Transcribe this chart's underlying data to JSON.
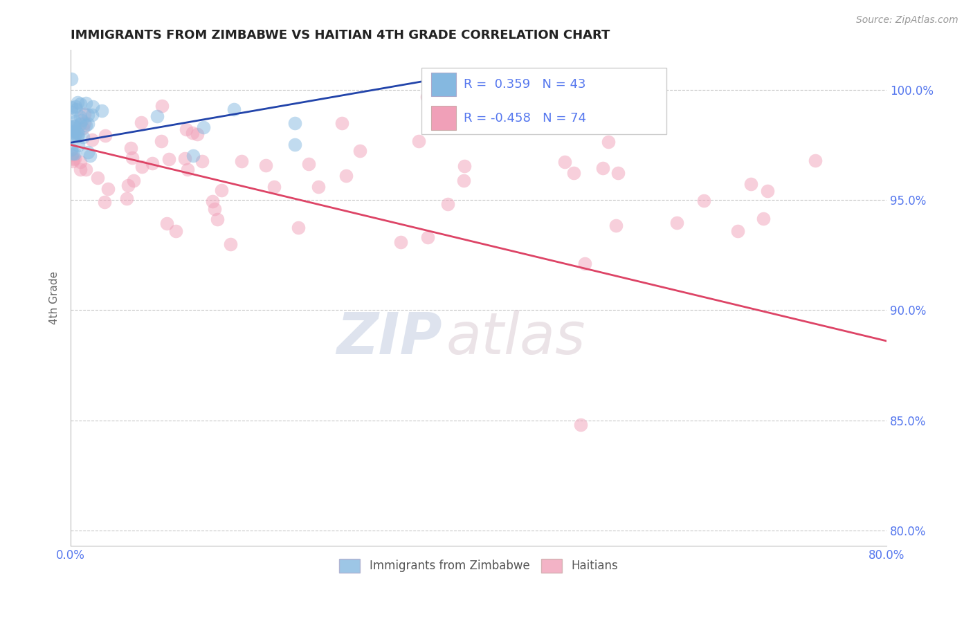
{
  "title": "IMMIGRANTS FROM ZIMBABWE VS HAITIAN 4TH GRADE CORRELATION CHART",
  "source": "Source: ZipAtlas.com",
  "ylabel": "4th Grade",
  "xlim": [
    0.0,
    0.8
  ],
  "ylim": [
    0.793,
    1.018
  ],
  "yticks": [
    0.8,
    0.85,
    0.9,
    0.95,
    1.0
  ],
  "yticklabels": [
    "80.0%",
    "85.0%",
    "90.0%",
    "95.0%",
    "100.0%"
  ],
  "grid_color": "#c8c8c8",
  "title_color": "#222222",
  "axis_label_color": "#666666",
  "tick_label_color": "#5577ee",
  "source_color": "#999999",
  "blue_color": "#85b8e0",
  "blue_line_color": "#2244aa",
  "pink_color": "#f0a0b8",
  "pink_line_color": "#dd4466",
  "legend_blue_label": "R =  0.359   N = 43",
  "legend_pink_label": "R = -0.458   N = 74",
  "watermark_zip": "ZIP",
  "watermark_atlas": "atlas",
  "blue_line_x0": 0.0,
  "blue_line_y0": 0.976,
  "blue_line_x1": 0.36,
  "blue_line_y1": 1.005,
  "pink_line_x0": 0.0,
  "pink_line_y0": 0.975,
  "pink_line_x1": 0.8,
  "pink_line_y1": 0.886
}
